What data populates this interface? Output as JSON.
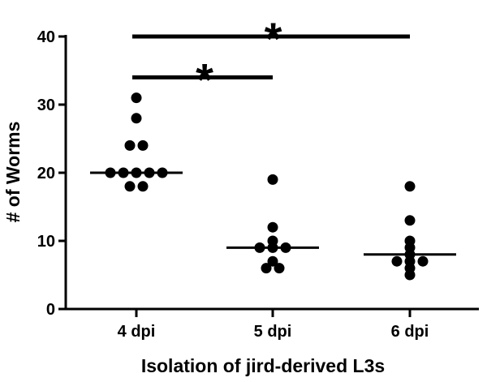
{
  "chart_data": {
    "type": "scatter",
    "xlabel": "Isolation of jird-derived L3s",
    "ylabel": "# of Worms",
    "ylim": [
      0,
      40
    ],
    "yticks": [
      "0",
      "10",
      "20",
      "30",
      "40"
    ],
    "categories": [
      "4 dpi",
      "5 dpi",
      "6 dpi"
    ],
    "groups": [
      {
        "category": "4 dpi",
        "values": [
          31,
          28,
          24,
          24,
          20,
          20,
          20,
          20,
          20,
          18,
          18
        ],
        "median": 20
      },
      {
        "category": "5 dpi",
        "values": [
          19,
          12,
          10,
          9,
          9,
          9,
          7,
          6,
          6
        ],
        "median": 9
      },
      {
        "category": "6 dpi",
        "values": [
          18,
          13,
          10,
          9,
          8,
          7,
          7,
          7,
          6,
          5
        ],
        "median": 8
      }
    ],
    "significance": [
      {
        "from": "4 dpi",
        "to": "6 dpi",
        "level": 40,
        "label": "*"
      },
      {
        "from": "4 dpi",
        "to": "5 dpi",
        "level": 34,
        "label": "*"
      }
    ],
    "colors": {
      "marker": "#000000",
      "line": "#000000"
    }
  }
}
